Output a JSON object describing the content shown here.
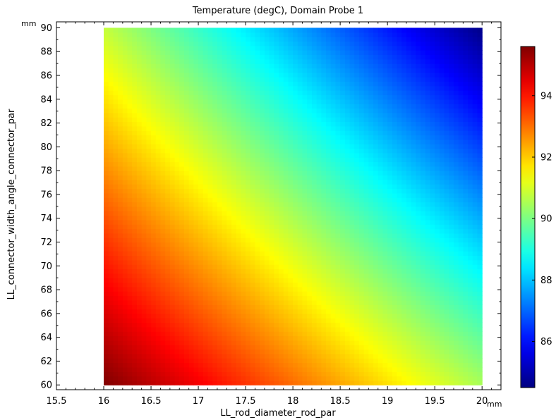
{
  "chart_data": {
    "type": "heatmap",
    "title": "Temperature (degC), Domain Probe 1",
    "xlabel": "LL_rod_diameter_rod_par",
    "ylabel": "LL_connector_width_angle_connector_par",
    "x_unit": "mm",
    "y_unit": "mm",
    "xlim": [
      15.5,
      20.2
    ],
    "ylim": [
      59.6,
      90.5
    ],
    "x_ticks": [
      "15.5",
      "16",
      "16.5",
      "17",
      "17.5",
      "18",
      "18.5",
      "19",
      "19.5",
      "20"
    ],
    "y_ticks": [
      "60",
      "62",
      "64",
      "66",
      "68",
      "70",
      "72",
      "74",
      "76",
      "78",
      "80",
      "82",
      "84",
      "86",
      "88",
      "90"
    ],
    "data_x_range": [
      16,
      20
    ],
    "data_y_range": [
      60,
      90
    ],
    "colorbar": {
      "min": 84.5,
      "max": 95.6,
      "ticks": [
        "86",
        "88",
        "90",
        "92",
        "94"
      ],
      "colormap": "jet"
    },
    "corner_values": {
      "x16_y60": 95.6,
      "x20_y60": 90.5,
      "x16_y90": 90.8,
      "x20_y90": 84.6
    },
    "grid": false
  }
}
